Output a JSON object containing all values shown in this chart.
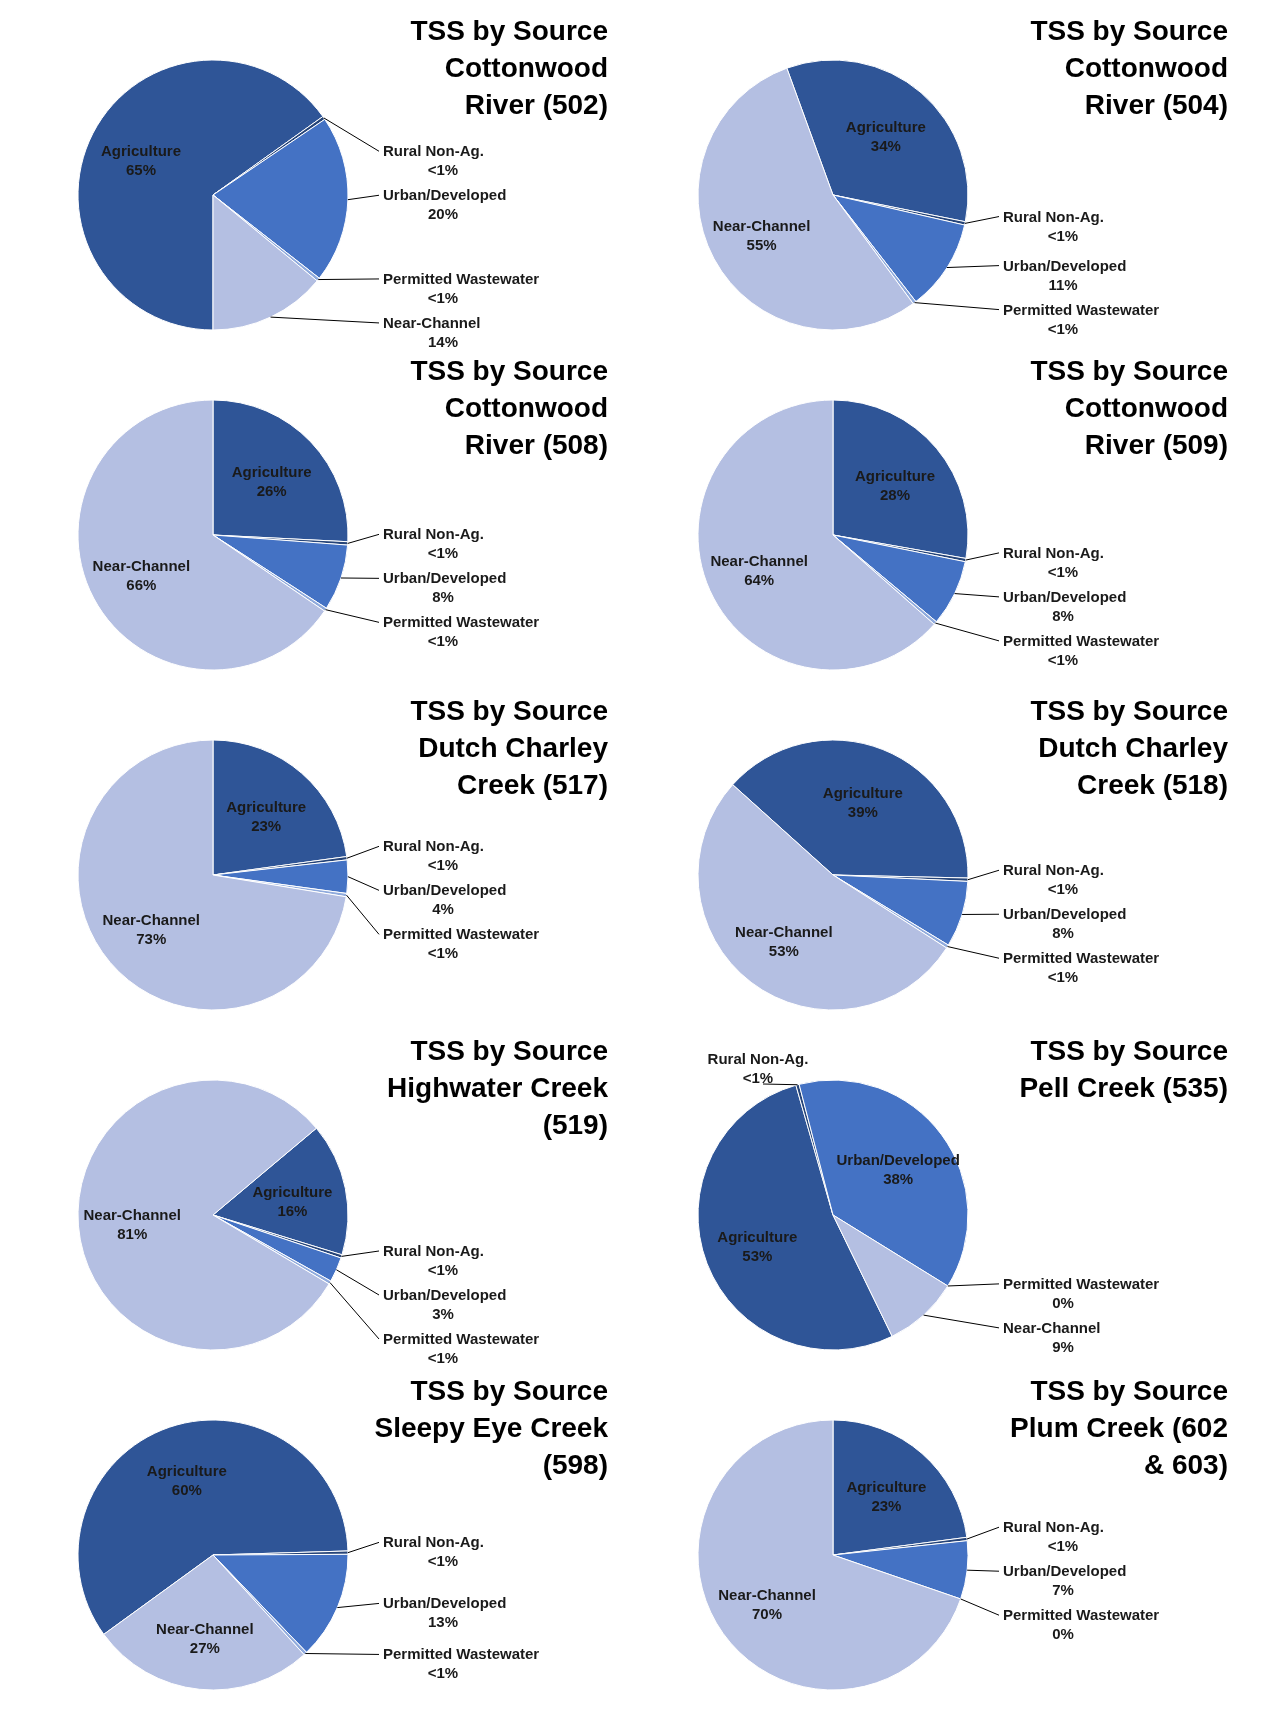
{
  "chart_data": [
    {
      "type": "pie",
      "title": "TSS by Source Cottonwood River (502)",
      "categories": [
        "Agriculture",
        "Rural Non-Ag.",
        "Urban/Developed",
        "Permitted Wastewater",
        "Near-Channel"
      ],
      "values": [
        65,
        0.4,
        20,
        0.4,
        14
      ],
      "value_labels": [
        "65%",
        "<1%",
        "20%",
        "<1%",
        "14%"
      ],
      "colors": [
        "#2f5597",
        "#264478",
        "#4472c4",
        "#8faadc",
        "#b4bfe2"
      ]
    },
    {
      "type": "pie",
      "title": "TSS by Source Cottonwood River (504)",
      "categories": [
        "Agriculture",
        "Rural Non-Ag.",
        "Urban/Developed",
        "Permitted Wastewater",
        "Near-Channel"
      ],
      "values": [
        34,
        0.4,
        11,
        0.4,
        55
      ],
      "value_labels": [
        "34%",
        "<1%",
        "11%",
        "<1%",
        "55%"
      ],
      "colors": [
        "#2f5597",
        "#264478",
        "#4472c4",
        "#8faadc",
        "#b4bfe2"
      ]
    },
    {
      "type": "pie",
      "title": "TSS by Source Cottonwood River (508)",
      "categories": [
        "Agriculture",
        "Rural Non-Ag.",
        "Urban/Developed",
        "Permitted Wastewater",
        "Near-Channel"
      ],
      "values": [
        26,
        0.4,
        8,
        0.4,
        66
      ],
      "value_labels": [
        "26%",
        "<1%",
        "8%",
        "<1%",
        "66%"
      ],
      "colors": [
        "#2f5597",
        "#264478",
        "#4472c4",
        "#8faadc",
        "#b4bfe2"
      ]
    },
    {
      "type": "pie",
      "title": "TSS by Source Cottonwood River (509)",
      "categories": [
        "Agriculture",
        "Rural Non-Ag.",
        "Urban/Developed",
        "Permitted Wastewater",
        "Near-Channel"
      ],
      "values": [
        28,
        0.4,
        8,
        0.4,
        64
      ],
      "value_labels": [
        "28%",
        "<1%",
        "8%",
        "<1%",
        "64%"
      ],
      "colors": [
        "#2f5597",
        "#264478",
        "#4472c4",
        "#8faadc",
        "#b4bfe2"
      ]
    },
    {
      "type": "pie",
      "title": "TSS by Source Dutch Charley Creek (517)",
      "categories": [
        "Agriculture",
        "Rural Non-Ag.",
        "Urban/Developed",
        "Permitted Wastewater",
        "Near-Channel"
      ],
      "values": [
        23,
        0.4,
        4,
        0.4,
        73
      ],
      "value_labels": [
        "23%",
        "<1%",
        "4%",
        "<1%",
        "73%"
      ],
      "colors": [
        "#2f5597",
        "#264478",
        "#4472c4",
        "#8faadc",
        "#b4bfe2"
      ]
    },
    {
      "type": "pie",
      "title": "TSS by Source Dutch Charley Creek (518)",
      "categories": [
        "Agriculture",
        "Rural Non-Ag.",
        "Urban/Developed",
        "Permitted Wastewater",
        "Near-Channel"
      ],
      "values": [
        39,
        0.4,
        8,
        0.4,
        53
      ],
      "value_labels": [
        "39%",
        "<1%",
        "8%",
        "<1%",
        "53%"
      ],
      "colors": [
        "#2f5597",
        "#264478",
        "#4472c4",
        "#8faadc",
        "#b4bfe2"
      ]
    },
    {
      "type": "pie",
      "title": "TSS by Source Highwater Creek (519)",
      "categories": [
        "Agriculture",
        "Rural Non-Ag.",
        "Urban/Developed",
        "Permitted Wastewater",
        "Near-Channel"
      ],
      "values": [
        16,
        0.4,
        3,
        0.4,
        81
      ],
      "value_labels": [
        "16%",
        "<1%",
        "3%",
        "<1%",
        "81%"
      ],
      "colors": [
        "#2f5597",
        "#264478",
        "#4472c4",
        "#8faadc",
        "#b4bfe2"
      ]
    },
    {
      "type": "pie",
      "title": "TSS by Source Pell Creek (535)",
      "categories": [
        "Agriculture",
        "Rural Non-Ag.",
        "Urban/Developed",
        "Permitted Wastewater",
        "Near-Channel"
      ],
      "values": [
        53,
        0.4,
        38,
        0,
        9
      ],
      "value_labels": [
        "53%",
        "<1%",
        "38%",
        "0%",
        "9%"
      ],
      "colors": [
        "#2f5597",
        "#264478",
        "#4472c4",
        "#8faadc",
        "#b4bfe2"
      ]
    },
    {
      "type": "pie",
      "title": "TSS by Source Sleepy Eye Creek (598)",
      "categories": [
        "Agriculture",
        "Rural Non-Ag.",
        "Urban/Developed",
        "Permitted Wastewater",
        "Near-Channel"
      ],
      "values": [
        60,
        0.4,
        13,
        0.4,
        27
      ],
      "value_labels": [
        "60%",
        "<1%",
        "13%",
        "<1%",
        "27%"
      ],
      "colors": [
        "#2f5597",
        "#264478",
        "#4472c4",
        "#8faadc",
        "#b4bfe2"
      ]
    },
    {
      "type": "pie",
      "title": "TSS by Source Plum Creek (602 & 603)",
      "categories": [
        "Agriculture",
        "Rural Non-Ag.",
        "Urban/Developed",
        "Permitted Wastewater",
        "Near-Channel"
      ],
      "values": [
        23,
        0.4,
        7,
        0,
        70
      ],
      "value_labels": [
        "23%",
        "<1%",
        "7%",
        "0%",
        "70%"
      ],
      "colors": [
        "#2f5597",
        "#264478",
        "#4472c4",
        "#8faadc",
        "#b4bfe2"
      ]
    }
  ]
}
